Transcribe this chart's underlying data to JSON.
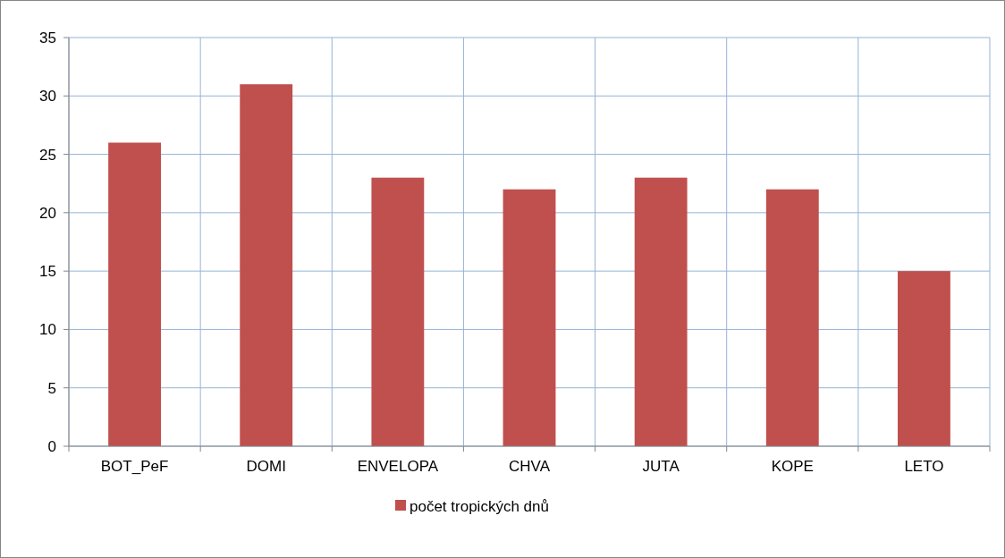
{
  "chart_data": {
    "type": "bar",
    "categories": [
      "BOT_PeF",
      "DOMI",
      "ENVELOPA",
      "CHVA",
      "JUTA",
      "KOPE",
      "LETO"
    ],
    "series": [
      {
        "name": "počet tropických dnů",
        "color": "#c0504d",
        "values": [
          26,
          31,
          23,
          22,
          23,
          22,
          15
        ]
      }
    ],
    "ylim": [
      0,
      35
    ],
    "yticks": [
      0,
      5,
      10,
      15,
      20,
      25,
      30,
      35
    ],
    "grid": true,
    "legend": "bottom"
  }
}
